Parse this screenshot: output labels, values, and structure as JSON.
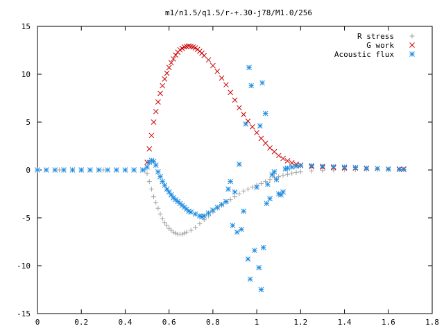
{
  "chart_data": {
    "type": "scatter",
    "title": "m1/n1.5/q1.5/r-+.30-j78/M1.0/256",
    "xlabel": "",
    "ylabel": "",
    "xlim": [
      0,
      1.8
    ],
    "ylim": [
      -15,
      15
    ],
    "x_ticks": [
      "0",
      "0.2",
      "0.4",
      "0.6",
      "0.8",
      "1",
      "1.2",
      "1.4",
      "1.6",
      "1.8"
    ],
    "y_ticks": [
      "15",
      "10",
      "5",
      "0",
      "-5",
      "-10",
      "-15"
    ],
    "x_tick_values": [
      0,
      0.2,
      0.4,
      0.6,
      0.8,
      1.0,
      1.2,
      1.4,
      1.6,
      1.8
    ],
    "y_tick_values": [
      15,
      10,
      5,
      0,
      -5,
      -10,
      -15
    ],
    "grid": false,
    "legend_position": "top-right",
    "series": [
      {
        "name": "R stress",
        "marker": "plus",
        "color": "#a0a0a0",
        "points": [
          [
            0.0,
            0
          ],
          [
            0.1,
            0
          ],
          [
            0.2,
            0
          ],
          [
            0.3,
            0
          ],
          [
            0.4,
            0
          ],
          [
            0.49,
            0
          ],
          [
            0.5,
            -0.4
          ],
          [
            0.51,
            -1.2
          ],
          [
            0.52,
            -2.0
          ],
          [
            0.53,
            -2.8
          ],
          [
            0.54,
            -3.4
          ],
          [
            0.55,
            -4.0
          ],
          [
            0.56,
            -4.6
          ],
          [
            0.57,
            -5.1
          ],
          [
            0.58,
            -5.5
          ],
          [
            0.59,
            -5.8
          ],
          [
            0.6,
            -6.1
          ],
          [
            0.61,
            -6.3
          ],
          [
            0.62,
            -6.5
          ],
          [
            0.63,
            -6.6
          ],
          [
            0.64,
            -6.7
          ],
          [
            0.65,
            -6.7
          ],
          [
            0.66,
            -6.7
          ],
          [
            0.67,
            -6.6
          ],
          [
            0.68,
            -6.5
          ],
          [
            0.7,
            -6.3
          ],
          [
            0.72,
            -6.0
          ],
          [
            0.74,
            -5.6
          ],
          [
            0.76,
            -5.2
          ],
          [
            0.78,
            -4.8
          ],
          [
            0.8,
            -4.4
          ],
          [
            0.82,
            -4.0
          ],
          [
            0.84,
            -3.7
          ],
          [
            0.86,
            -3.4
          ],
          [
            0.88,
            -3.1
          ],
          [
            0.9,
            -2.8
          ],
          [
            0.92,
            -2.5
          ],
          [
            0.94,
            -2.2
          ],
          [
            0.96,
            -2.0
          ],
          [
            0.98,
            -1.8
          ],
          [
            1.0,
            -1.6
          ],
          [
            1.02,
            -1.4
          ],
          [
            1.04,
            -1.2
          ],
          [
            1.06,
            -1.0
          ],
          [
            1.08,
            -0.8
          ],
          [
            1.1,
            -0.7
          ],
          [
            1.12,
            -0.55
          ],
          [
            1.14,
            -0.45
          ],
          [
            1.16,
            -0.35
          ],
          [
            1.18,
            -0.25
          ],
          [
            1.2,
            -0.2
          ],
          [
            1.25,
            -0.1
          ],
          [
            1.3,
            -0.05
          ],
          [
            1.35,
            0
          ],
          [
            1.4,
            0.05
          ],
          [
            1.45,
            0.05
          ],
          [
            1.5,
            0.05
          ],
          [
            1.55,
            0.05
          ],
          [
            1.6,
            0.05
          ],
          [
            1.65,
            0.05
          ],
          [
            1.67,
            0.05
          ]
        ]
      },
      {
        "name": "G work",
        "marker": "cross",
        "color": "#cc0000",
        "points": [
          [
            0.5,
            0.8
          ],
          [
            0.51,
            2.2
          ],
          [
            0.52,
            3.6
          ],
          [
            0.53,
            5.0
          ],
          [
            0.54,
            6.1
          ],
          [
            0.55,
            7.1
          ],
          [
            0.56,
            8.0
          ],
          [
            0.57,
            8.8
          ],
          [
            0.58,
            9.5
          ],
          [
            0.59,
            10.1
          ],
          [
            0.6,
            10.7
          ],
          [
            0.61,
            11.2
          ],
          [
            0.62,
            11.6
          ],
          [
            0.63,
            12.0
          ],
          [
            0.64,
            12.3
          ],
          [
            0.65,
            12.55
          ],
          [
            0.66,
            12.7
          ],
          [
            0.67,
            12.85
          ],
          [
            0.68,
            12.9
          ],
          [
            0.69,
            12.95
          ],
          [
            0.7,
            12.9
          ],
          [
            0.71,
            12.85
          ],
          [
            0.72,
            12.75
          ],
          [
            0.73,
            12.6
          ],
          [
            0.74,
            12.4
          ],
          [
            0.75,
            12.2
          ],
          [
            0.76,
            11.95
          ],
          [
            0.78,
            11.5
          ],
          [
            0.8,
            10.9
          ],
          [
            0.82,
            10.3
          ],
          [
            0.84,
            9.6
          ],
          [
            0.86,
            8.9
          ],
          [
            0.88,
            8.1
          ],
          [
            0.9,
            7.3
          ],
          [
            0.92,
            6.5
          ],
          [
            0.94,
            5.8
          ],
          [
            0.96,
            5.1
          ],
          [
            0.98,
            4.5
          ],
          [
            1.0,
            3.9
          ],
          [
            1.02,
            3.3
          ],
          [
            1.04,
            2.8
          ],
          [
            1.06,
            2.3
          ],
          [
            1.08,
            1.9
          ],
          [
            1.1,
            1.5
          ],
          [
            1.12,
            1.2
          ],
          [
            1.14,
            0.95
          ],
          [
            1.16,
            0.75
          ],
          [
            1.18,
            0.6
          ],
          [
            1.2,
            0.5
          ],
          [
            1.25,
            0.35
          ],
          [
            1.3,
            0.3
          ],
          [
            1.35,
            0.25
          ],
          [
            1.4,
            0.2
          ],
          [
            1.45,
            0.2
          ],
          [
            1.5,
            0.15
          ],
          [
            1.55,
            0.15
          ],
          [
            1.6,
            0.1
          ],
          [
            1.65,
            0.1
          ],
          [
            1.67,
            0.1
          ]
        ]
      },
      {
        "name": "Acoustic flux",
        "marker": "star",
        "color": "#1e8ce0",
        "points": [
          [
            0.0,
            0
          ],
          [
            0.04,
            0
          ],
          [
            0.08,
            0
          ],
          [
            0.12,
            0
          ],
          [
            0.16,
            0
          ],
          [
            0.2,
            0
          ],
          [
            0.24,
            0
          ],
          [
            0.28,
            0
          ],
          [
            0.32,
            0
          ],
          [
            0.36,
            0
          ],
          [
            0.4,
            0
          ],
          [
            0.44,
            0
          ],
          [
            0.48,
            0
          ],
          [
            0.5,
            0.3
          ],
          [
            0.51,
            0.8
          ],
          [
            0.52,
            1.0
          ],
          [
            0.53,
            0.9
          ],
          [
            0.54,
            0.5
          ],
          [
            0.55,
            -0.2
          ],
          [
            0.56,
            -0.7
          ],
          [
            0.57,
            -1.2
          ],
          [
            0.58,
            -1.6
          ],
          [
            0.59,
            -2.0
          ],
          [
            0.6,
            -2.3
          ],
          [
            0.61,
            -2.6
          ],
          [
            0.62,
            -2.9
          ],
          [
            0.63,
            -3.1
          ],
          [
            0.64,
            -3.3
          ],
          [
            0.65,
            -3.5
          ],
          [
            0.66,
            -3.7
          ],
          [
            0.67,
            -3.9
          ],
          [
            0.68,
            -4.1
          ],
          [
            0.69,
            -4.3
          ],
          [
            0.7,
            -4.4
          ],
          [
            0.72,
            -4.6
          ],
          [
            0.74,
            -4.8
          ],
          [
            0.75,
            -4.9
          ],
          [
            0.76,
            -4.8
          ],
          [
            0.78,
            -4.5
          ],
          [
            0.8,
            -4.2
          ],
          [
            0.82,
            -3.9
          ],
          [
            0.84,
            -3.6
          ],
          [
            0.86,
            -3.3
          ],
          [
            0.87,
            -2.0
          ],
          [
            0.88,
            -1.2
          ],
          [
            0.89,
            -5.8
          ],
          [
            0.9,
            -2.3
          ],
          [
            0.91,
            -6.5
          ],
          [
            0.92,
            0.6
          ],
          [
            0.93,
            -6.2
          ],
          [
            0.94,
            -4.3
          ],
          [
            0.95,
            4.8
          ],
          [
            0.96,
            -9.3
          ],
          [
            0.965,
            10.7
          ],
          [
            0.97,
            -11.4
          ],
          [
            0.975,
            8.8
          ],
          [
            0.99,
            -8.4
          ],
          [
            1.0,
            -1.8
          ],
          [
            1.01,
            -10.2
          ],
          [
            1.015,
            4.6
          ],
          [
            1.02,
            -12.5
          ],
          [
            1.025,
            9.1
          ],
          [
            1.03,
            -8.1
          ],
          [
            1.04,
            5.9
          ],
          [
            1.045,
            -3.5
          ],
          [
            1.05,
            -1.5
          ],
          [
            1.06,
            -3.0
          ],
          [
            1.07,
            -0.5
          ],
          [
            1.08,
            -0.2
          ],
          [
            1.09,
            -1.0
          ],
          [
            1.1,
            -2.5
          ],
          [
            1.11,
            -2.6
          ],
          [
            1.12,
            -2.3
          ],
          [
            1.13,
            0.1
          ],
          [
            1.14,
            0.2
          ],
          [
            1.16,
            0.3
          ],
          [
            1.18,
            0.4
          ],
          [
            1.2,
            0.45
          ],
          [
            1.25,
            0.45
          ],
          [
            1.3,
            0.4
          ],
          [
            1.35,
            0.35
          ],
          [
            1.4,
            0.3
          ],
          [
            1.45,
            0.25
          ],
          [
            1.5,
            0.2
          ],
          [
            1.55,
            0.15
          ],
          [
            1.6,
            0.1
          ],
          [
            1.65,
            0.05
          ],
          [
            1.67,
            0.05
          ]
        ]
      }
    ]
  }
}
